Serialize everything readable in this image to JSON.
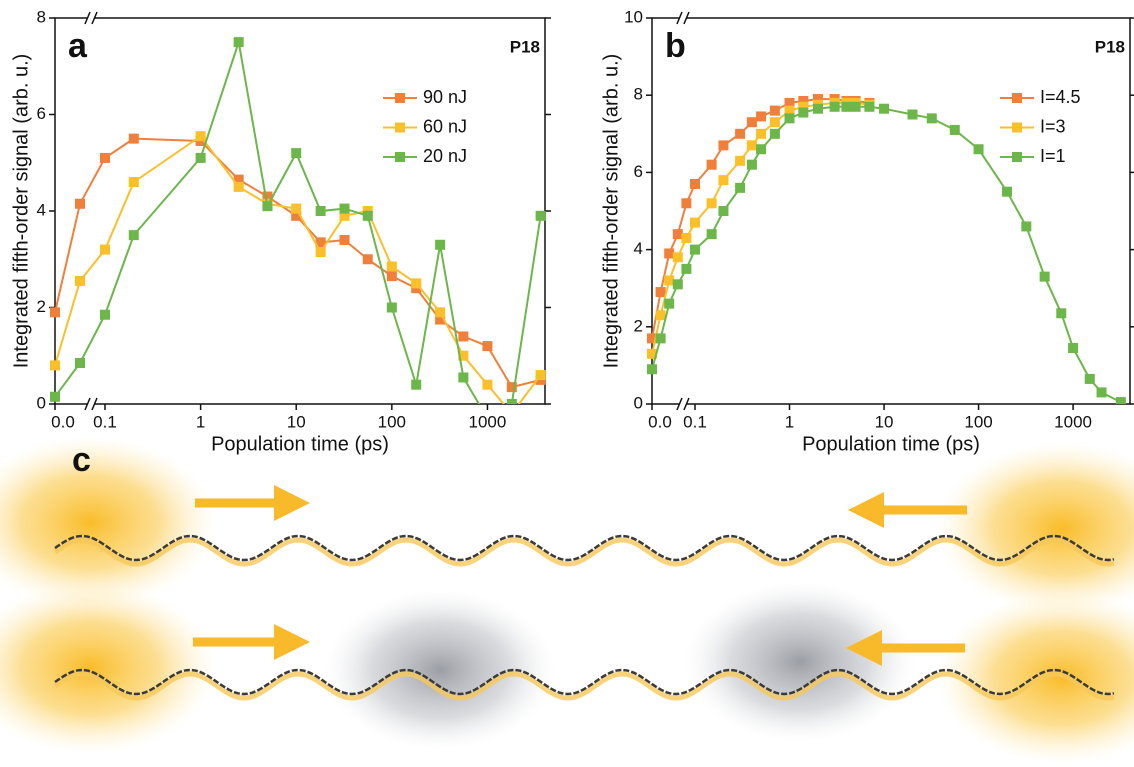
{
  "chart_data": [
    {
      "type": "line",
      "panel_label": "a",
      "annotation": "P18",
      "x_label": "Population time (ps)",
      "y_label": "Integrated fifth-order signal (arb. u.)",
      "x": [
        0,
        0.05,
        0.1,
        0.2,
        1,
        2.5,
        5,
        10,
        18,
        32,
        56,
        100,
        180,
        320,
        560,
        1000,
        1800,
        3600
      ],
      "x_break": 0.1,
      "xlim": [
        0,
        4000
      ],
      "xticks": [
        {
          "value": 0,
          "label": "0.0"
        },
        0.1,
        1,
        10,
        100,
        1000
      ],
      "ylim": [
        0,
        8
      ],
      "yticks": [
        0,
        2,
        4,
        6,
        8
      ],
      "series": [
        {
          "name": "90 nJ",
          "color": "#f07f3c",
          "values": [
            1.9,
            4.15,
            5.1,
            5.5,
            5.45,
            4.65,
            4.3,
            3.9,
            3.35,
            3.4,
            3.0,
            2.65,
            2.4,
            1.75,
            1.4,
            1.2,
            0.35,
            0.5
          ]
        },
        {
          "name": "60 nJ",
          "color": "#fbbf2a",
          "values": [
            0.8,
            2.55,
            3.2,
            4.6,
            5.55,
            4.5,
            4.15,
            4.05,
            3.15,
            3.9,
            4.0,
            2.85,
            2.5,
            1.9,
            1.0,
            0.4,
            -0.2,
            0.6
          ]
        },
        {
          "name": "20 nJ",
          "color": "#6cb64a",
          "values": [
            0.15,
            0.85,
            1.85,
            3.5,
            5.1,
            7.5,
            4.1,
            5.2,
            4.0,
            4.05,
            3.9,
            2.0,
            0.4,
            3.3,
            0.55,
            -0.3,
            0,
            3.9
          ]
        }
      ]
    },
    {
      "type": "line",
      "panel_label": "b",
      "annotation": "P18",
      "x_label": "Population time (ps)",
      "y_label": "Integrated fifth-order signal (arb. u.)",
      "x": [
        0,
        0.02,
        0.04,
        0.06,
        0.08,
        0.1,
        0.15,
        0.2,
        0.3,
        0.4,
        0.5,
        0.7,
        1,
        1.4,
        2,
        3,
        4,
        5,
        7,
        10,
        20,
        32,
        56,
        100,
        200,
        320,
        500,
        750,
        1000,
        1500,
        2000,
        3200
      ],
      "x_break": 0.1,
      "xlim": [
        0,
        4000
      ],
      "xticks": [
        {
          "value": 0,
          "label": "0.0"
        },
        0.1,
        1,
        10,
        100,
        1000
      ],
      "ylim": [
        0,
        10
      ],
      "yticks": [
        0,
        2,
        4,
        6,
        8,
        10
      ],
      "series": [
        {
          "name": "I=4.5",
          "color": "#f07f3c",
          "values": [
            1.7,
            2.9,
            3.9,
            4.4,
            5.2,
            5.7,
            6.2,
            6.7,
            7.0,
            7.3,
            7.45,
            7.6,
            7.8,
            7.85,
            7.9,
            7.9,
            7.85,
            7.85,
            7.8,
            null,
            null,
            null,
            null,
            null,
            null,
            null,
            null,
            null,
            null,
            null,
            null,
            null
          ]
        },
        {
          "name": "I=3",
          "color": "#fbbf2a",
          "values": [
            1.3,
            2.3,
            3.2,
            3.8,
            4.3,
            4.7,
            5.2,
            5.8,
            6.3,
            6.7,
            7.0,
            7.3,
            7.6,
            7.7,
            7.75,
            7.8,
            7.8,
            7.8,
            7.75,
            null,
            null,
            null,
            null,
            null,
            null,
            null,
            null,
            null,
            null,
            null,
            null,
            null
          ]
        },
        {
          "name": "I=1",
          "color": "#6cb64a",
          "values": [
            0.9,
            1.7,
            2.6,
            3.1,
            3.5,
            4.0,
            4.4,
            5.0,
            5.6,
            6.2,
            6.6,
            7.0,
            7.4,
            7.55,
            7.65,
            7.7,
            7.7,
            7.7,
            7.7,
            7.65,
            7.5,
            7.4,
            7.1,
            6.6,
            5.5,
            4.6,
            3.3,
            2.35,
            1.45,
            0.65,
            0.3,
            0.05
          ]
        }
      ]
    }
  ],
  "panel_c": {
    "label": "c"
  }
}
